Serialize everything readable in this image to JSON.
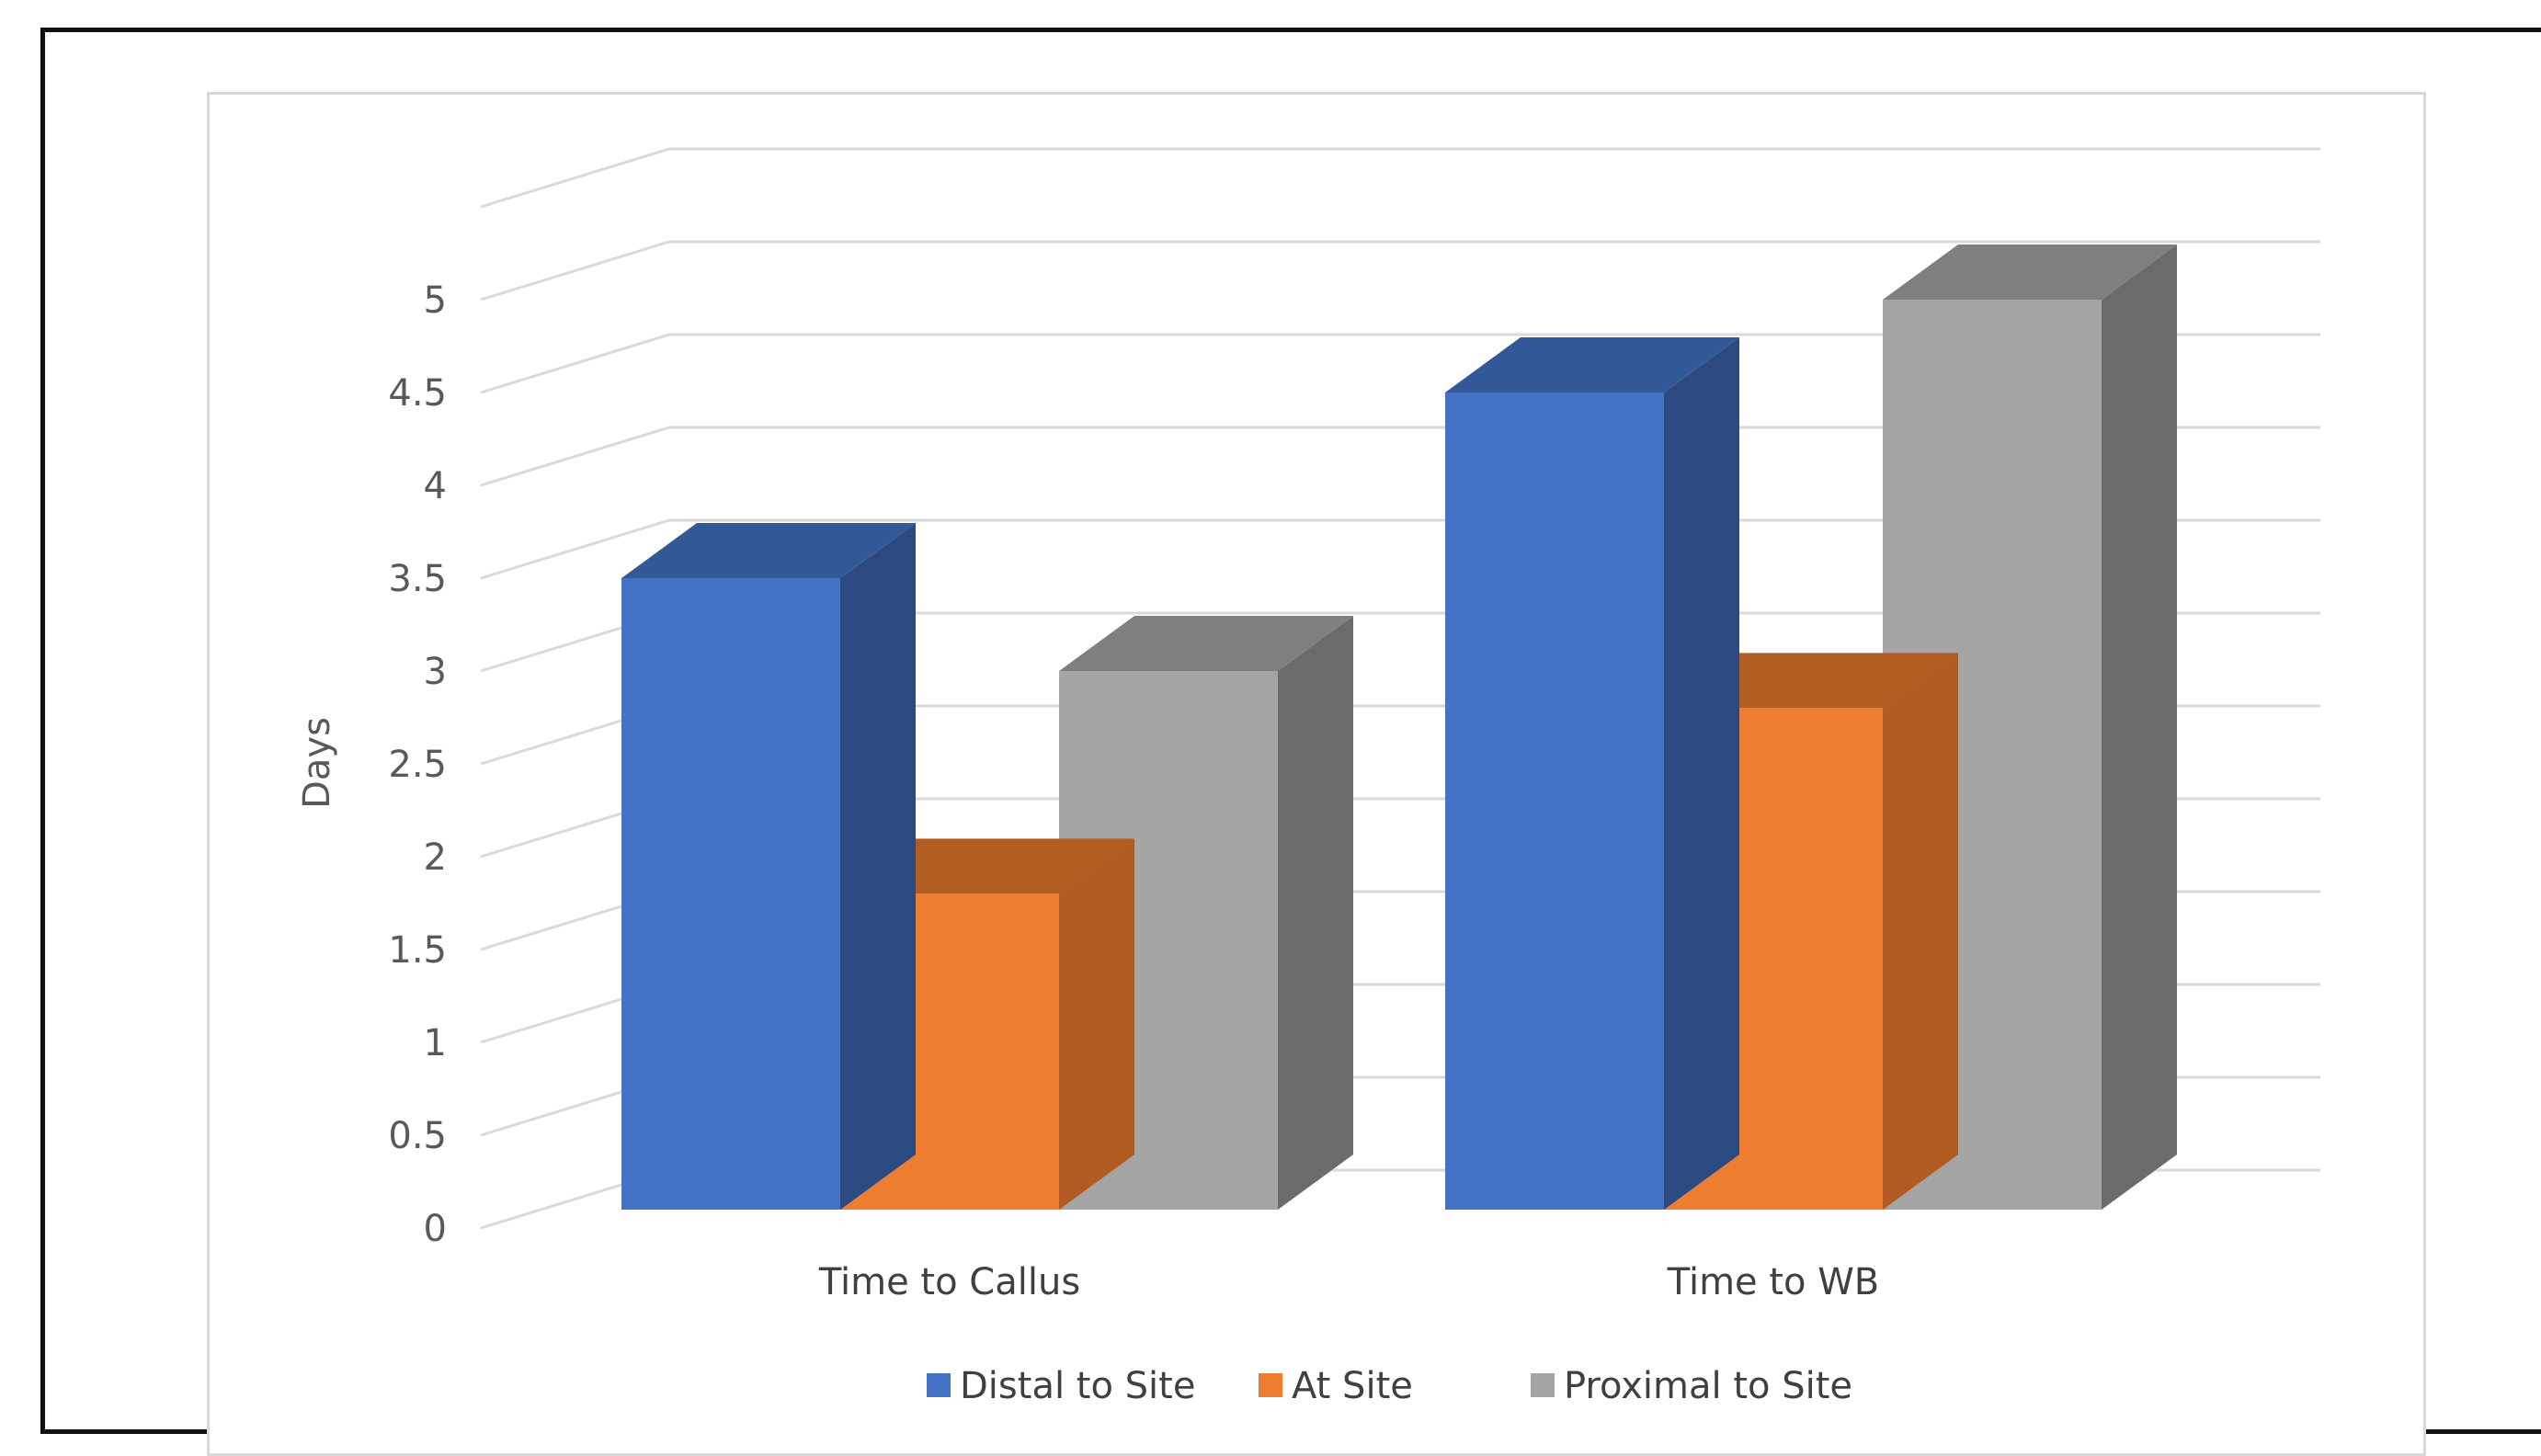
{
  "chart_data": {
    "type": "bar",
    "style": "3d-clustered-column",
    "title": "",
    "xlabel": "",
    "ylabel": "Days",
    "ylim": [
      0,
      5
    ],
    "ytick_step": 0.5,
    "yticks": [
      "0",
      "0.5",
      "1",
      "1.5",
      "2",
      "2.5",
      "3",
      "3.5",
      "4",
      "4.5",
      "5"
    ],
    "grid": true,
    "legend_position": "bottom",
    "categories": [
      "Time to Callus",
      "Time to WB"
    ],
    "series": [
      {
        "name": "Distal to Site",
        "values": [
          3.5,
          4.5
        ],
        "color": "#4472c4",
        "side_color": "#2c4a80",
        "top_color": "#335898"
      },
      {
        "name": "At Site",
        "values": [
          1.8,
          2.8
        ],
        "color": "#ed7d31",
        "side_color": "#b05c22",
        "top_color": "#b35d22"
      },
      {
        "name": "Proximal to Site",
        "values": [
          3.0,
          5.0
        ],
        "color": "#a5a5a5",
        "side_color": "#6b6b6b",
        "top_color": "#7f7f7f"
      }
    ]
  }
}
